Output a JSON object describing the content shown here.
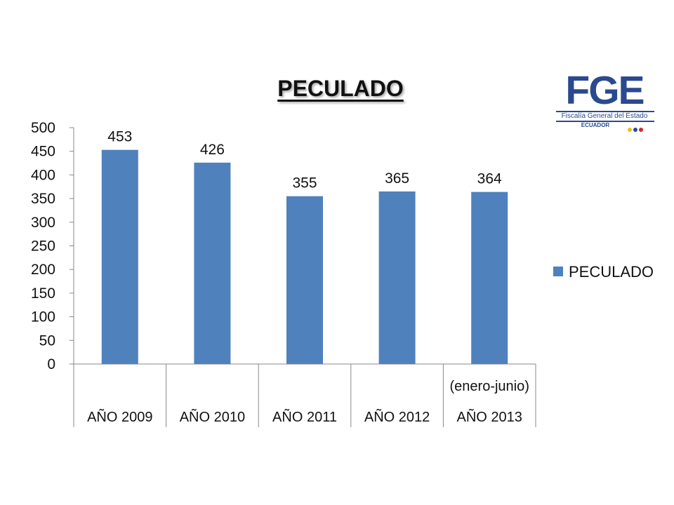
{
  "logo": {
    "acronym": "FGE",
    "full_name": "Fiscalía General del Estado",
    "country": "ECUADOR",
    "colors": {
      "brand": "#2a4a8f",
      "dot1": "#e8c21a",
      "dot2": "#2a4a8f",
      "dot3": "#d9262a"
    }
  },
  "chart_data": {
    "type": "bar",
    "title": "PECULADO",
    "categories": [
      "AÑO 2009",
      "AÑO 2010",
      "AÑO 2011",
      "AÑO 2012",
      "AÑO 2013"
    ],
    "category_notes": [
      "",
      "",
      "",
      "",
      "(enero-junio)"
    ],
    "series": [
      {
        "name": "PECULADO",
        "values": [
          453,
          426,
          355,
          365,
          364
        ],
        "color": "#4f81bd"
      }
    ],
    "ylim": [
      0,
      500
    ],
    "yticks": [
      0,
      50,
      100,
      150,
      200,
      250,
      300,
      350,
      400,
      450,
      500
    ],
    "data_labels": true,
    "grid": false,
    "legend_position": "right"
  }
}
